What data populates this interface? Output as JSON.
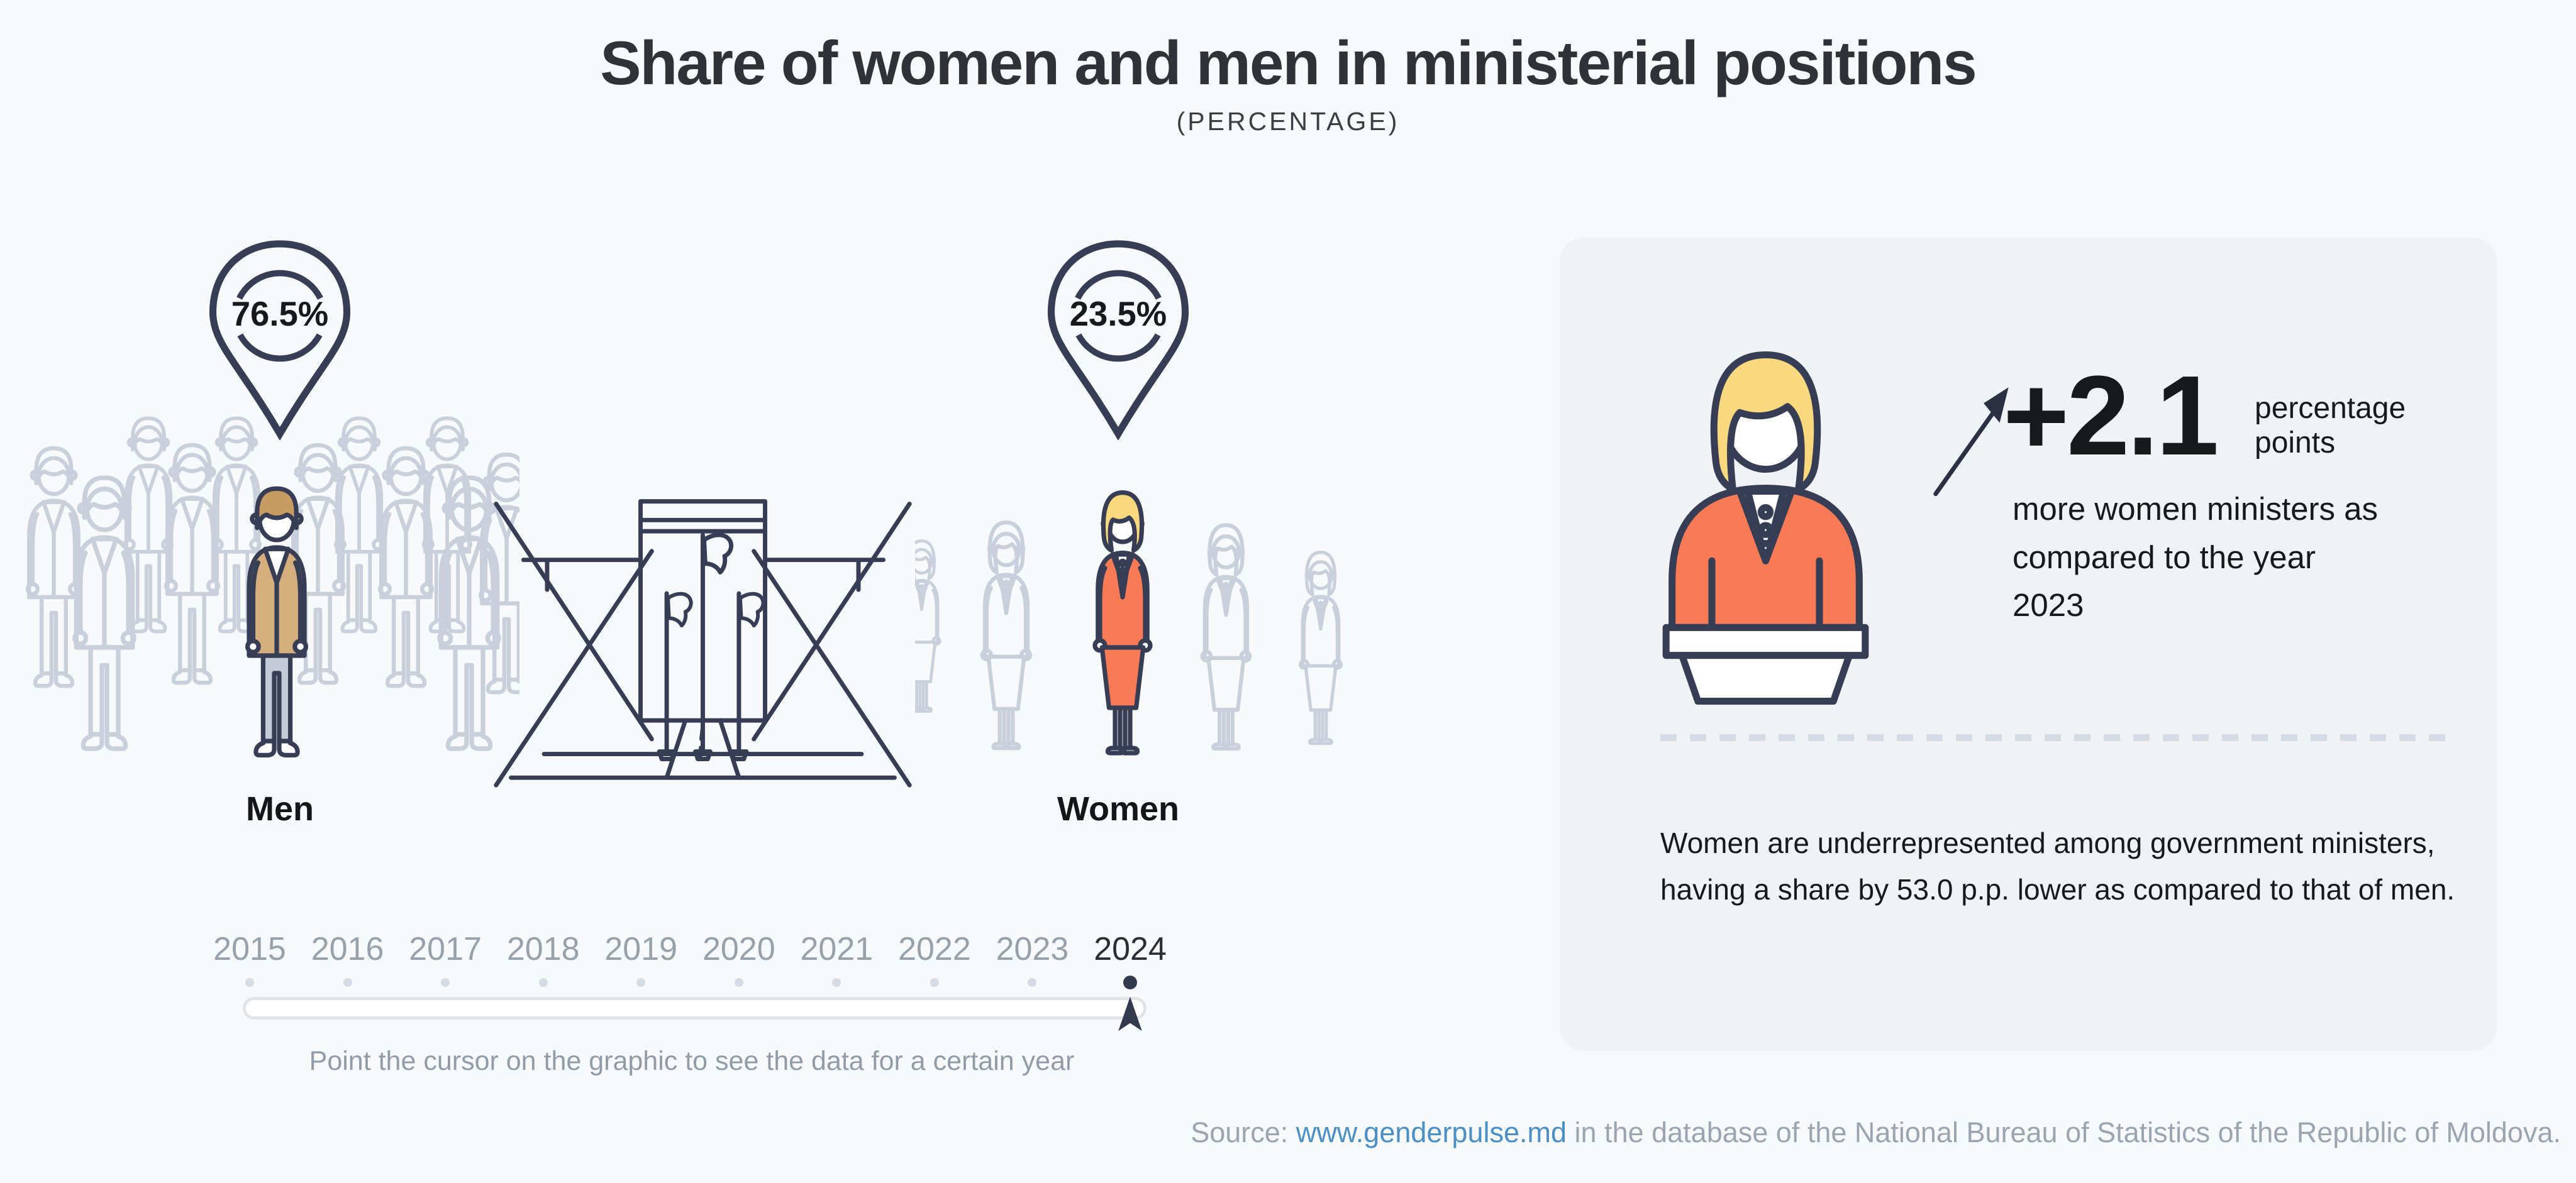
{
  "header": {
    "title": "Share of women and men in ministerial positions",
    "subtitle": "(PERCENTAGE)"
  },
  "chart_data": {
    "type": "pictogram",
    "title": "Share of women and men in ministerial positions",
    "unit": "percentage",
    "categories": [
      "Men",
      "Women"
    ],
    "values": [
      76.5,
      23.5
    ],
    "selected_year": "2024",
    "timeline_years": [
      "2015",
      "2016",
      "2017",
      "2018",
      "2019",
      "2020",
      "2021",
      "2022",
      "2023",
      "2024"
    ],
    "women_change_vs_2023_pp": 2.1,
    "women_vs_men_gap_pp": 53.0
  },
  "scene": {
    "men": {
      "label": "Men",
      "value": "76.5%"
    },
    "women": {
      "label": "Women",
      "value": "23.5%"
    }
  },
  "timeline": {
    "years": [
      "2015",
      "2016",
      "2017",
      "2018",
      "2019",
      "2020",
      "2021",
      "2022",
      "2023",
      "2024"
    ],
    "selected": "2024",
    "hint": "Point the cursor on the graphic to see the data for a certain year"
  },
  "panel": {
    "delta": "+2.1",
    "delta_unit": "percentage points",
    "delta_caption": "more women ministers as compared to the year 2023",
    "note": "Women are underrepresented among government ministers, having a share by 53.0 p.p. lower as compared to that of men."
  },
  "source": {
    "label": "Source: ",
    "link": "www.genderpulse.md",
    "rest": " in the database of the National Bureau of Statistics of the Republic of Moldova."
  },
  "colors": {
    "page_bg": "#F8F9FB",
    "panel_bg": "#F0F2F5",
    "navy_outline": "#363D54",
    "gray_outline": "#C9D0DB",
    "orange_suit": "#F87B56",
    "tan_suit": "#D4AE7D",
    "blonde_hair": "#FAD87D",
    "pants_gray": "#C5CBD6",
    "year_gray": "#97A1AC",
    "year_selected": "#2A2F36",
    "muted_text": "#919CA8",
    "link_blue": "#4A90C6",
    "text_dark": "#17191D"
  }
}
